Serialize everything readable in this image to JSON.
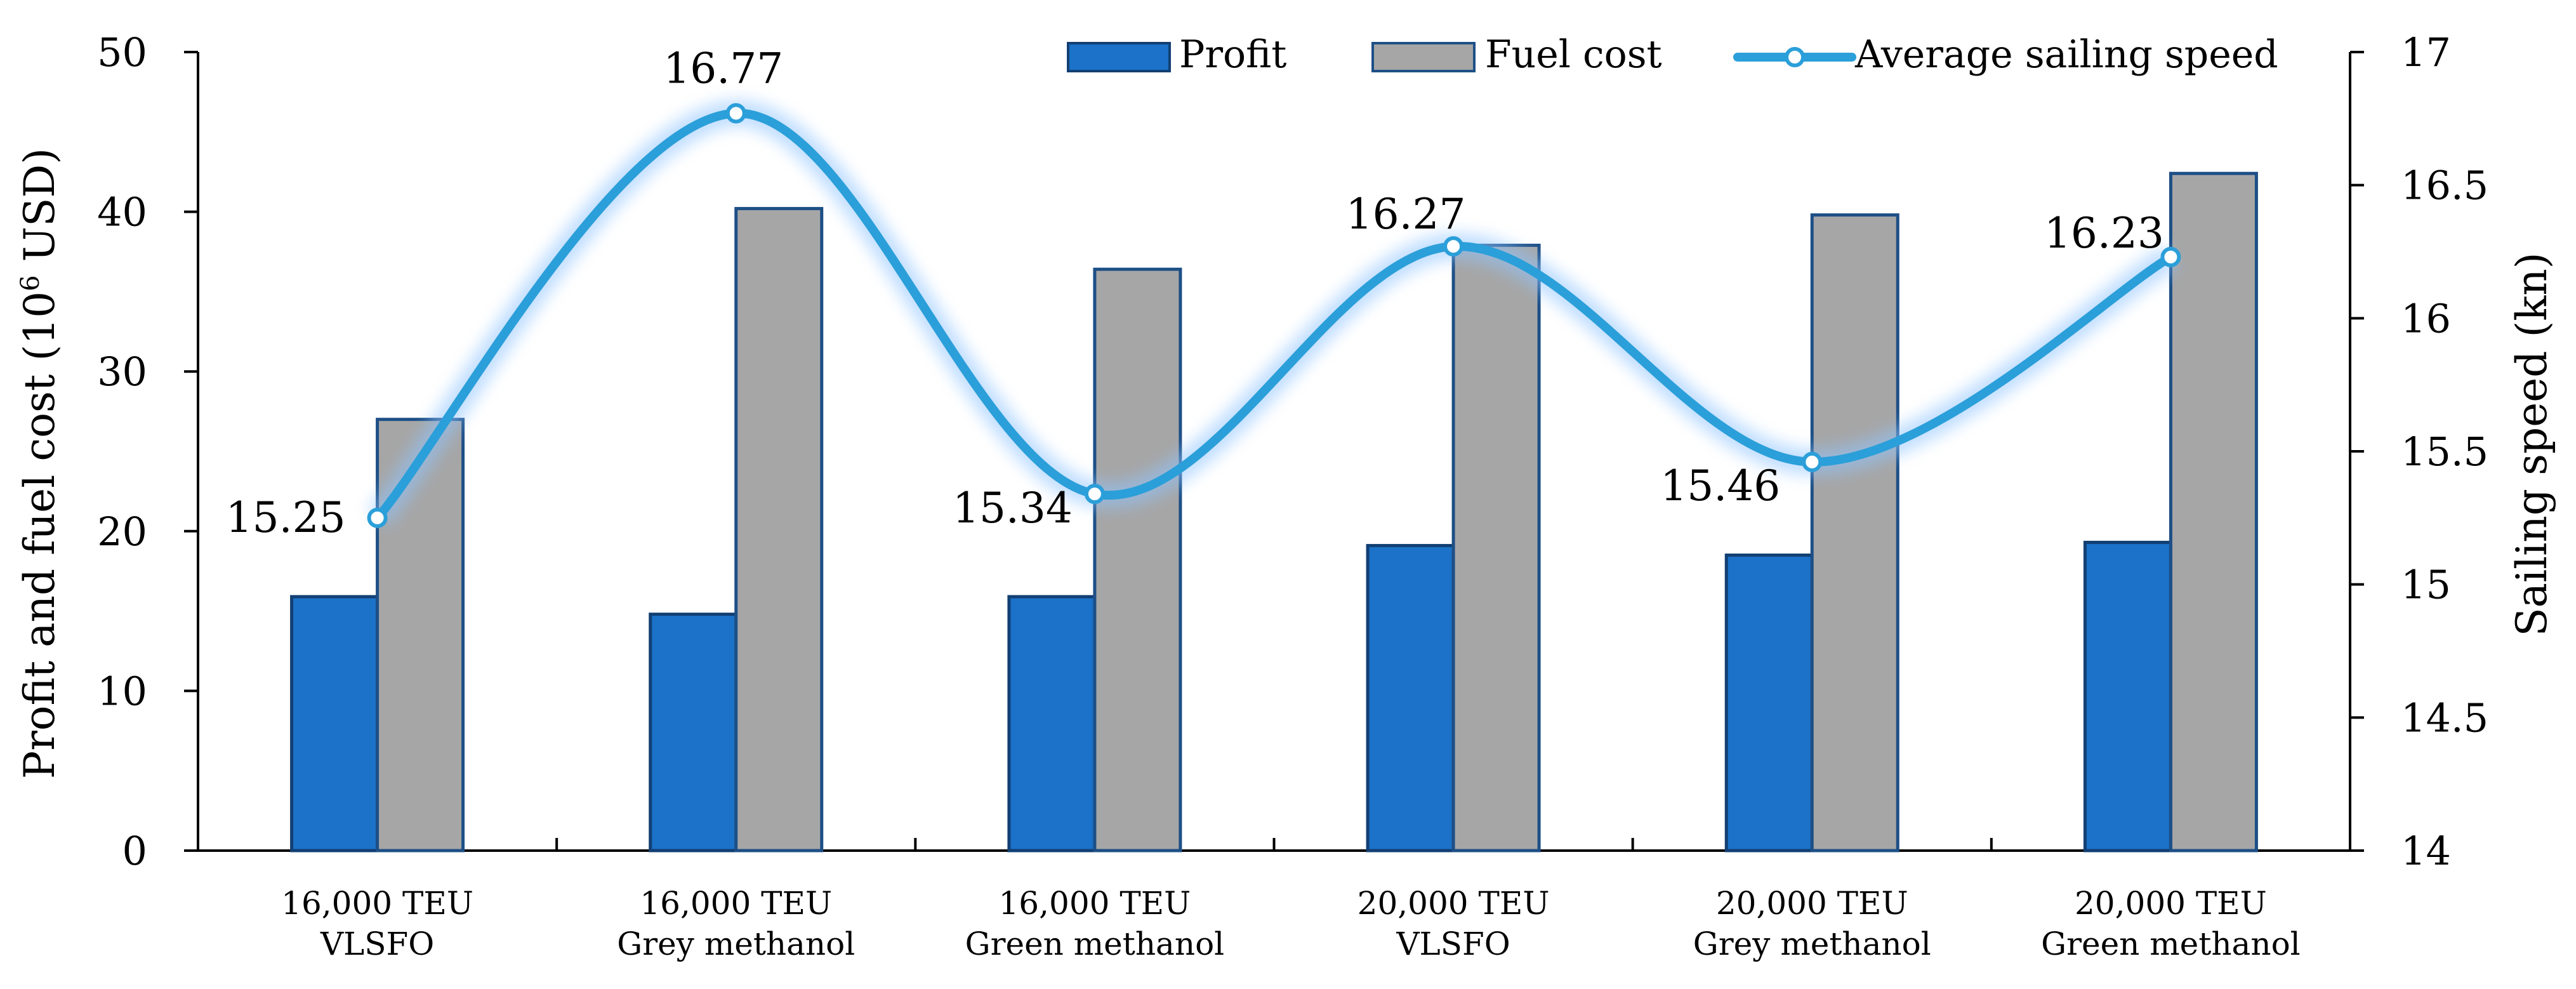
{
  "chart_data": {
    "type": "bar",
    "categories": [
      [
        "16,000 TEU",
        "VLSFO"
      ],
      [
        "16,000 TEU",
        "Grey methanol"
      ],
      [
        "16,000 TEU",
        "Green methanol"
      ],
      [
        "20,000 TEU",
        "VLSFO"
      ],
      [
        "20,000 TEU",
        "Grey methanol"
      ],
      [
        "20,000 TEU",
        "Green methanol"
      ]
    ],
    "series": [
      {
        "name": "Profit",
        "type": "bar",
        "axis": "left",
        "color": "#1b72c8",
        "values": [
          15.9,
          14.8,
          15.9,
          19.1,
          18.5,
          19.3
        ]
      },
      {
        "name": "Fuel cost",
        "type": "bar",
        "axis": "left",
        "color": "#a6a6a6",
        "values": [
          27.0,
          40.2,
          36.4,
          37.9,
          39.8,
          42.4
        ]
      },
      {
        "name": "Average sailing speed",
        "type": "line",
        "axis": "right",
        "color": "#2b9fd9",
        "values": [
          15.25,
          16.77,
          15.34,
          16.27,
          15.46,
          16.23
        ]
      }
    ],
    "data_labels": [
      "15.25",
      "16.77",
      "15.34",
      "16.27",
      "15.46",
      "16.23"
    ],
    "ylabel": "Profit and fuel cost (10",
    "ylabel_sup": "6",
    "ylabel_tail": " USD)",
    "y2label": "Sailing speed (kn)",
    "ylim": [
      0,
      50
    ],
    "y_ticks": [
      "0",
      "10",
      "20",
      "30",
      "40",
      "50"
    ],
    "y2lim": [
      14,
      17
    ],
    "y2_ticks": [
      "14",
      "14.5",
      "15",
      "15.5",
      "16",
      "16.5",
      "17"
    ],
    "grid": false,
    "legend_position": "top"
  }
}
